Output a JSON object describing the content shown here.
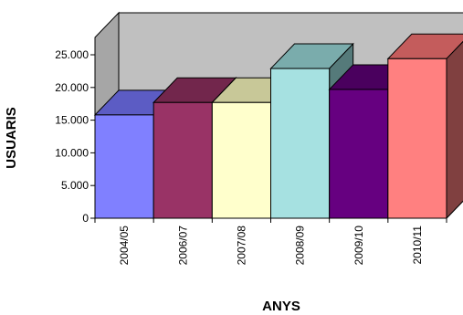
{
  "chart_data": {
    "type": "bar",
    "title": "",
    "xlabel": "ANYS",
    "ylabel": "USUARIS",
    "categories": [
      "2004/05",
      "2006/07",
      "2007/08",
      "2008/09",
      "2009/10",
      "2010/11"
    ],
    "values": [
      15800,
      17700,
      17700,
      22900,
      19700,
      24400
    ],
    "yticks": [
      "0",
      "5.000",
      "10.000",
      "15.000",
      "20.000",
      "25.000"
    ],
    "ylim": [
      0,
      25000
    ],
    "three_d": true,
    "grid": false,
    "legend": "none",
    "colors": {
      "fronts": [
        "#8080ff",
        "#993366",
        "#ffffcc",
        "#a6e1e1",
        "#660080",
        "#ff8080"
      ],
      "tops": [
        "#5c5cc4",
        "#72264c",
        "#c8c898",
        "#7aacac",
        "#4a005e",
        "#c45c5c"
      ],
      "sides": [
        "#3e3e8a",
        "#4e1a34",
        "#8e8e6a",
        "#557a7a",
        "#33003f",
        "#804040"
      ],
      "wall_back": "#c0c0c0",
      "wall_side": "#a6a6a6",
      "floor": "#8c8c8c"
    }
  }
}
